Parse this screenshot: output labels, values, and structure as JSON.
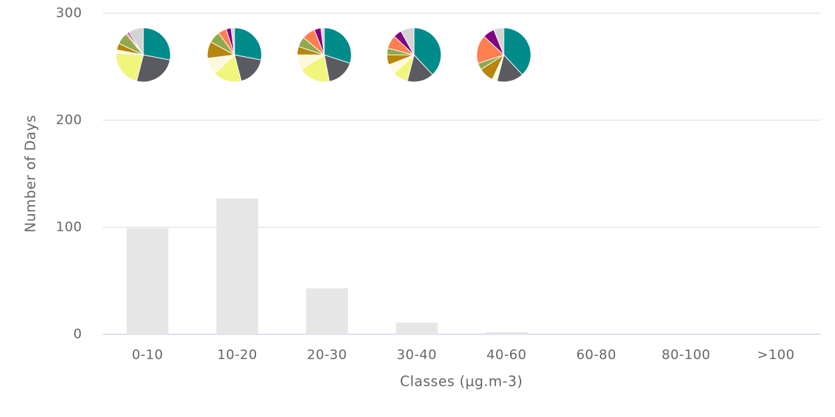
{
  "chart_data": [
    {
      "type": "bar",
      "x_label": "Classes (µg.m-3)",
      "y_label": "Number of Days",
      "categories": [
        "0-10",
        "10-20",
        "20-30",
        "30-40",
        "40-60",
        "60-80",
        "80-100",
        ">100"
      ],
      "values": [
        99,
        127,
        43,
        11,
        2,
        0,
        0,
        0
      ],
      "color": "#e6e6e6",
      "ylim": [
        0,
        300
      ],
      "yticks": [
        0,
        100,
        200,
        300
      ],
      "grid": true
    },
    {
      "type": "pie",
      "colors": [
        "#008b8b",
        "#5a5a61",
        "#f0f57c",
        "#fff8dc",
        "#b8860b",
        "#8faa4a",
        "#ff7f50",
        "#800080",
        "#d3d3d3"
      ],
      "pies": [
        {
          "values": [
            28,
            26,
            22,
            2,
            4,
            7,
            1,
            1,
            9
          ]
        },
        {
          "values": [
            28,
            18,
            17,
            10,
            10,
            7,
            5,
            3,
            2
          ]
        },
        {
          "values": [
            30,
            17,
            19,
            9,
            5,
            6,
            8,
            4,
            2
          ]
        },
        {
          "values": [
            38,
            16,
            9,
            6,
            6,
            4,
            8,
            5,
            8
          ]
        },
        {
          "values": [
            38,
            16,
            1,
            2,
            9,
            4,
            17,
            7,
            6
          ]
        }
      ]
    }
  ]
}
